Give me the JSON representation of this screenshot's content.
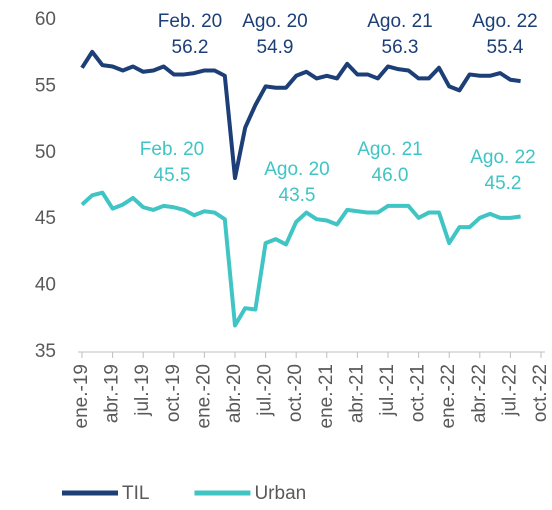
{
  "chart_data": {
    "type": "line",
    "categories": [
      "ene.-19",
      null,
      null,
      "abr.-19",
      null,
      null,
      "jul.-19",
      null,
      null,
      "oct.-19",
      null,
      null,
      "ene.-20",
      null,
      null,
      "abr.-20",
      null,
      null,
      "jul.-20",
      null,
      null,
      "oct.-20",
      null,
      null,
      "ene.-21",
      null,
      null,
      "abr.-21",
      null,
      null,
      "jul.-21",
      null,
      null,
      "oct.-21",
      null,
      null,
      "ene.-22",
      null,
      null,
      "abr.-22",
      null,
      null,
      "jul.-22",
      null,
      null,
      "oct.-22"
    ],
    "series": [
      {
        "name": "TIL",
        "color": "#1c3f77",
        "values": [
          56.4,
          57.6,
          56.6,
          56.5,
          56.2,
          56.5,
          56.1,
          56.2,
          56.5,
          55.9,
          55.9,
          56.0,
          56.2,
          56.2,
          55.8,
          48.1,
          51.9,
          53.6,
          55.0,
          54.9,
          54.9,
          55.8,
          56.1,
          55.6,
          55.8,
          55.6,
          56.7,
          55.9,
          55.9,
          55.6,
          56.5,
          56.3,
          56.2,
          55.6,
          55.6,
          56.4,
          55.0,
          54.7,
          55.9,
          55.8,
          55.8,
          56.0,
          55.5,
          55.4,
          null,
          null
        ]
      },
      {
        "name": "Urban",
        "color": "#40c4c4",
        "values": [
          46.1,
          46.8,
          47.0,
          45.8,
          46.1,
          46.6,
          45.9,
          45.7,
          46.0,
          45.9,
          45.7,
          45.3,
          45.6,
          45.5,
          45.0,
          37.0,
          38.3,
          38.2,
          43.2,
          43.5,
          43.1,
          44.8,
          45.5,
          45.0,
          44.9,
          44.6,
          45.7,
          45.6,
          45.5,
          45.5,
          46.0,
          46.0,
          46.0,
          45.1,
          45.5,
          45.5,
          43.2,
          44.4,
          44.4,
          45.1,
          45.4,
          45.1,
          45.1,
          45.2,
          null,
          null
        ]
      }
    ],
    "annotations": [
      {
        "lines": [
          "Feb. 20",
          "56.2"
        ]
      },
      {
        "lines": [
          "Ago. 20",
          "54.9"
        ]
      },
      {
        "lines": [
          "Ago. 21",
          "56.3"
        ]
      },
      {
        "lines": [
          "Ago. 22",
          "55.4"
        ]
      },
      {
        "lines": [
          "Feb. 20",
          "45.5"
        ]
      },
      {
        "lines": [
          "Ago. 20",
          "43.5"
        ]
      },
      {
        "lines": [
          "Ago. 21",
          "46.0"
        ]
      },
      {
        "lines": [
          "Ago. 22",
          "45.2"
        ]
      }
    ],
    "ylim": [
      35,
      60
    ],
    "yticks": [
      35,
      40,
      45,
      50,
      55,
      60
    ],
    "grid": false,
    "legend": "bottom"
  }
}
